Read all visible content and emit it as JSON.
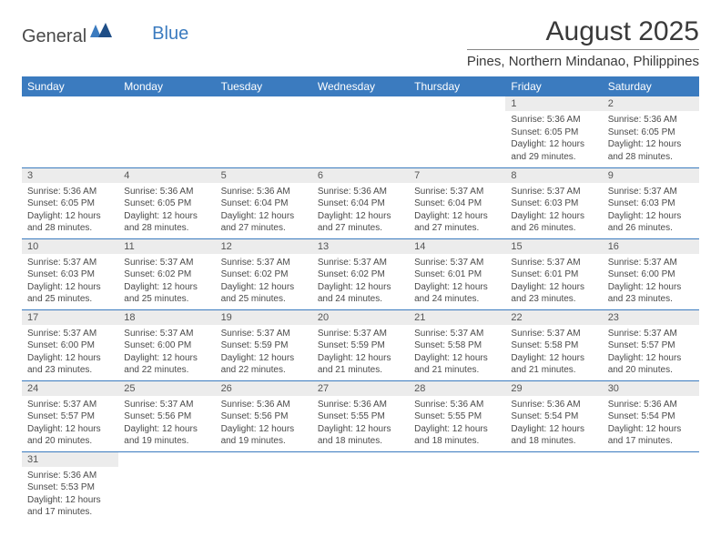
{
  "logo": {
    "general": "General",
    "blue": "Blue"
  },
  "title": "August 2025",
  "location": "Pines, Northern Mindanao, Philippines",
  "colors": {
    "header_bg": "#3b7bbf",
    "header_fg": "#ffffff",
    "daynum_bg": "#ececec",
    "rule": "#3b7bbf"
  },
  "fonts": {
    "title_pt": 30,
    "location_pt": 15,
    "dayhead_pt": 12,
    "daynum_pt": 11,
    "body_pt": 10
  },
  "weekdays": [
    "Sunday",
    "Monday",
    "Tuesday",
    "Wednesday",
    "Thursday",
    "Friday",
    "Saturday"
  ],
  "weeks": [
    [
      null,
      null,
      null,
      null,
      null,
      {
        "n": "1",
        "t": "Sunrise: 5:36 AM\nSunset: 6:05 PM\nDaylight: 12 hours\nand 29 minutes."
      },
      {
        "n": "2",
        "t": "Sunrise: 5:36 AM\nSunset: 6:05 PM\nDaylight: 12 hours\nand 28 minutes."
      }
    ],
    [
      {
        "n": "3",
        "t": "Sunrise: 5:36 AM\nSunset: 6:05 PM\nDaylight: 12 hours\nand 28 minutes."
      },
      {
        "n": "4",
        "t": "Sunrise: 5:36 AM\nSunset: 6:05 PM\nDaylight: 12 hours\nand 28 minutes."
      },
      {
        "n": "5",
        "t": "Sunrise: 5:36 AM\nSunset: 6:04 PM\nDaylight: 12 hours\nand 27 minutes."
      },
      {
        "n": "6",
        "t": "Sunrise: 5:36 AM\nSunset: 6:04 PM\nDaylight: 12 hours\nand 27 minutes."
      },
      {
        "n": "7",
        "t": "Sunrise: 5:37 AM\nSunset: 6:04 PM\nDaylight: 12 hours\nand 27 minutes."
      },
      {
        "n": "8",
        "t": "Sunrise: 5:37 AM\nSunset: 6:03 PM\nDaylight: 12 hours\nand 26 minutes."
      },
      {
        "n": "9",
        "t": "Sunrise: 5:37 AM\nSunset: 6:03 PM\nDaylight: 12 hours\nand 26 minutes."
      }
    ],
    [
      {
        "n": "10",
        "t": "Sunrise: 5:37 AM\nSunset: 6:03 PM\nDaylight: 12 hours\nand 25 minutes."
      },
      {
        "n": "11",
        "t": "Sunrise: 5:37 AM\nSunset: 6:02 PM\nDaylight: 12 hours\nand 25 minutes."
      },
      {
        "n": "12",
        "t": "Sunrise: 5:37 AM\nSunset: 6:02 PM\nDaylight: 12 hours\nand 25 minutes."
      },
      {
        "n": "13",
        "t": "Sunrise: 5:37 AM\nSunset: 6:02 PM\nDaylight: 12 hours\nand 24 minutes."
      },
      {
        "n": "14",
        "t": "Sunrise: 5:37 AM\nSunset: 6:01 PM\nDaylight: 12 hours\nand 24 minutes."
      },
      {
        "n": "15",
        "t": "Sunrise: 5:37 AM\nSunset: 6:01 PM\nDaylight: 12 hours\nand 23 minutes."
      },
      {
        "n": "16",
        "t": "Sunrise: 5:37 AM\nSunset: 6:00 PM\nDaylight: 12 hours\nand 23 minutes."
      }
    ],
    [
      {
        "n": "17",
        "t": "Sunrise: 5:37 AM\nSunset: 6:00 PM\nDaylight: 12 hours\nand 23 minutes."
      },
      {
        "n": "18",
        "t": "Sunrise: 5:37 AM\nSunset: 6:00 PM\nDaylight: 12 hours\nand 22 minutes."
      },
      {
        "n": "19",
        "t": "Sunrise: 5:37 AM\nSunset: 5:59 PM\nDaylight: 12 hours\nand 22 minutes."
      },
      {
        "n": "20",
        "t": "Sunrise: 5:37 AM\nSunset: 5:59 PM\nDaylight: 12 hours\nand 21 minutes."
      },
      {
        "n": "21",
        "t": "Sunrise: 5:37 AM\nSunset: 5:58 PM\nDaylight: 12 hours\nand 21 minutes."
      },
      {
        "n": "22",
        "t": "Sunrise: 5:37 AM\nSunset: 5:58 PM\nDaylight: 12 hours\nand 21 minutes."
      },
      {
        "n": "23",
        "t": "Sunrise: 5:37 AM\nSunset: 5:57 PM\nDaylight: 12 hours\nand 20 minutes."
      }
    ],
    [
      {
        "n": "24",
        "t": "Sunrise: 5:37 AM\nSunset: 5:57 PM\nDaylight: 12 hours\nand 20 minutes."
      },
      {
        "n": "25",
        "t": "Sunrise: 5:37 AM\nSunset: 5:56 PM\nDaylight: 12 hours\nand 19 minutes."
      },
      {
        "n": "26",
        "t": "Sunrise: 5:36 AM\nSunset: 5:56 PM\nDaylight: 12 hours\nand 19 minutes."
      },
      {
        "n": "27",
        "t": "Sunrise: 5:36 AM\nSunset: 5:55 PM\nDaylight: 12 hours\nand 18 minutes."
      },
      {
        "n": "28",
        "t": "Sunrise: 5:36 AM\nSunset: 5:55 PM\nDaylight: 12 hours\nand 18 minutes."
      },
      {
        "n": "29",
        "t": "Sunrise: 5:36 AM\nSunset: 5:54 PM\nDaylight: 12 hours\nand 18 minutes."
      },
      {
        "n": "30",
        "t": "Sunrise: 5:36 AM\nSunset: 5:54 PM\nDaylight: 12 hours\nand 17 minutes."
      }
    ],
    [
      {
        "n": "31",
        "t": "Sunrise: 5:36 AM\nSunset: 5:53 PM\nDaylight: 12 hours\nand 17 minutes."
      },
      null,
      null,
      null,
      null,
      null,
      null
    ]
  ]
}
